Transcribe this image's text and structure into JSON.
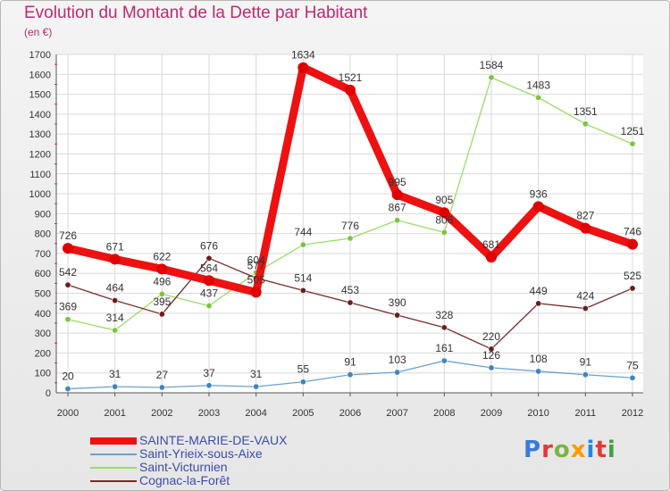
{
  "title": "Evolution du Montant de la Dette par Habitant",
  "subtitle": "(en €)",
  "logo": {
    "text": "Proxiti",
    "colors": [
      "#3a7bd5",
      "#e53935",
      "#7cb342",
      "#ff9800",
      "#1e88e5",
      "#e53935",
      "#43a047"
    ]
  },
  "colors": {
    "title": "#c0296e",
    "grid": "#d9d9d9",
    "axis": "#555555",
    "label": "#333333"
  },
  "chart_data": {
    "type": "line",
    "title": "Evolution du Montant de la Dette par Habitant",
    "subtitle": "(en €)",
    "xlabel": "",
    "ylabel": "",
    "categories": [
      "2000",
      "2001",
      "2002",
      "2003",
      "2004",
      "2005",
      "2006",
      "2007",
      "2008",
      "2009",
      "2010",
      "2011",
      "2012"
    ],
    "ylim": [
      0,
      1700
    ],
    "yticks": [
      0,
      100,
      200,
      300,
      400,
      500,
      600,
      700,
      800,
      900,
      1000,
      1100,
      1200,
      1300,
      1400,
      1500,
      1600,
      1700
    ],
    "grid": true,
    "legend_position": "bottom-left",
    "series": [
      {
        "name": "SAINTE-MARIE-DE-VAUX",
        "color": "#ee1111",
        "marker": "#e00000",
        "width": 9,
        "values": [
          726,
          671,
          622,
          564,
          505,
          1634,
          1521,
          995,
          905,
          681,
          936,
          827,
          746
        ],
        "labels": [
          "726",
          "671",
          "622",
          "564",
          "505",
          "1634",
          "1521",
          "995",
          "905",
          "681",
          "936",
          "827",
          "746"
        ]
      },
      {
        "name": "Saint-Yrieix-sous-Aixe",
        "color": "#6aa0d0",
        "marker": "#3f84c4",
        "width": 1.3,
        "values": [
          20,
          31,
          27,
          37,
          31,
          55,
          91,
          103,
          161,
          126,
          108,
          91,
          75
        ],
        "labels": [
          "20",
          "31",
          "27",
          "37",
          "31",
          "55",
          "91",
          "103",
          "161",
          "126",
          "108",
          "91",
          "75"
        ]
      },
      {
        "name": "Saint-Victurnien",
        "color": "#99dd66",
        "marker": "#7cc443",
        "width": 1.3,
        "values": [
          369,
          314,
          496,
          437,
          604,
          744,
          776,
          867,
          806,
          1584,
          1483,
          1351,
          1251
        ],
        "labels": [
          "369",
          "314",
          "496",
          "437",
          "604",
          "744",
          "776",
          "867",
          "806",
          "1584",
          "1483",
          "1351",
          "1251"
        ]
      },
      {
        "name": "Cognac-la-Forêt",
        "color": "#7a2a2a",
        "marker": "#6b1f1f",
        "width": 1.3,
        "values": [
          542,
          464,
          395,
          676,
          577,
          514,
          453,
          390,
          328,
          220,
          449,
          424,
          525
        ],
        "labels": [
          "542",
          "464",
          "395",
          "676",
          "577",
          "514",
          "453",
          "390",
          "328",
          "220",
          "449",
          "424",
          "525"
        ]
      }
    ]
  }
}
